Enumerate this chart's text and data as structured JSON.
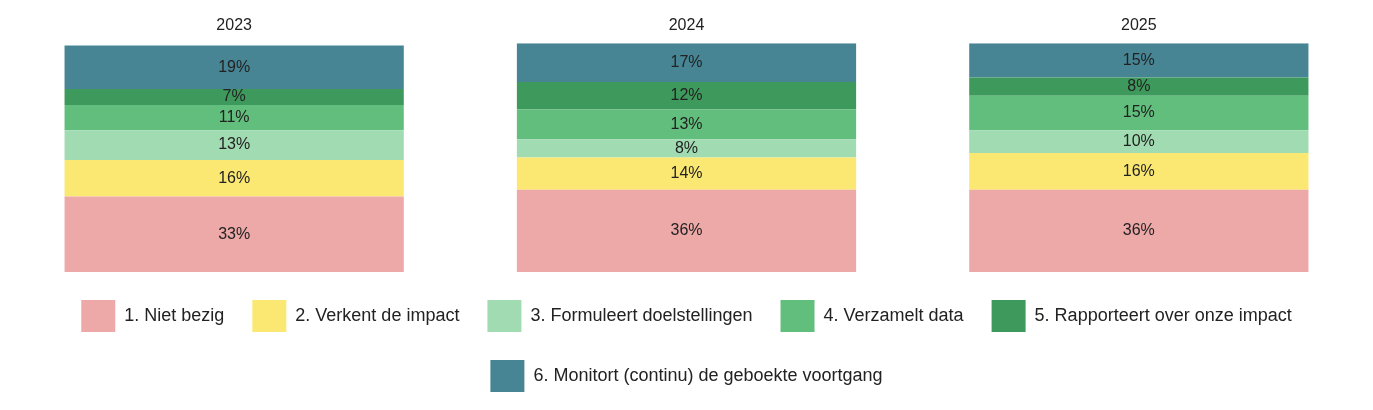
{
  "chart_data": {
    "type": "bar",
    "stacked": true,
    "categories": [
      "2023",
      "2024",
      "2025"
    ],
    "tick_labels": "x",
    "legend": "bottom",
    "series": [
      {
        "name": "1. Niet bezig",
        "color": "#eda8a8",
        "values": [
          33,
          36,
          36
        ],
        "value_labels": [
          "33%",
          "36%",
          "36%"
        ]
      },
      {
        "name": "2. Verkent de impact",
        "color": "#fbe872",
        "values": [
          16,
          14,
          16
        ],
        "value_labels": [
          "16%",
          "14%",
          "16%"
        ]
      },
      {
        "name": "3. Formuleert doelstellingen",
        "color": "#a1dbb2",
        "values": [
          13,
          8,
          10
        ],
        "value_labels": [
          "13%",
          "8%",
          "10%"
        ]
      },
      {
        "name": "4. Verzamelt data",
        "color": "#62be7c",
        "values": [
          11,
          13,
          15
        ],
        "value_labels": [
          "11%",
          "13%",
          "15%"
        ]
      },
      {
        "name": "5. Rapporteert over onze impact",
        "color": "#3e9a5c",
        "values": [
          7,
          12,
          8
        ],
        "value_labels": [
          "7%",
          "12%",
          "8%"
        ]
      },
      {
        "name": "6. Monitort (continu) de geboekte voortgang",
        "color": "#488594",
        "values": [
          19,
          17,
          15
        ],
        "value_labels": [
          "19%",
          "17%",
          "15%"
        ]
      }
    ]
  }
}
